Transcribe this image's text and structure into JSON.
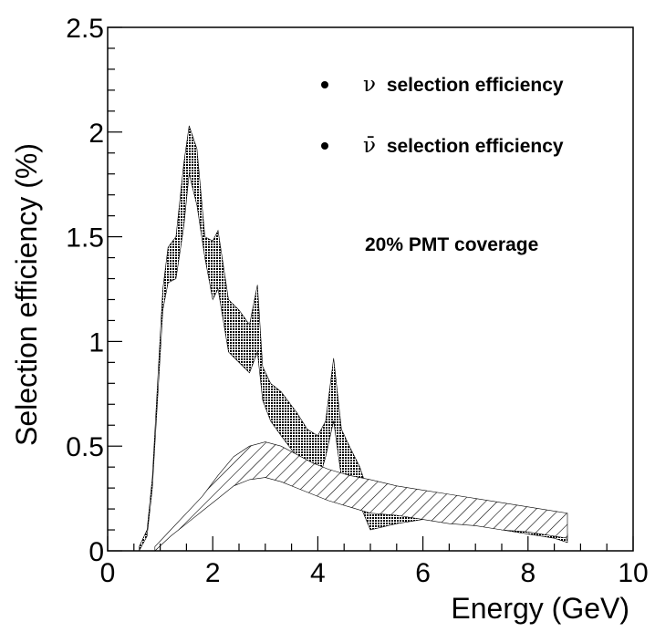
{
  "chart_data": {
    "type": "area",
    "title": "",
    "xlabel": "Energy (GeV)",
    "ylabel": "Selection efficiency (%)",
    "xlim": [
      0,
      10
    ],
    "ylim": [
      0,
      2.5
    ],
    "x_ticks": [
      "0",
      "2",
      "4",
      "6",
      "8",
      "10"
    ],
    "y_ticks": [
      "0",
      "0.5",
      "1",
      "1.5",
      "2",
      "2.5"
    ],
    "grid": false,
    "legend_position": "top-right",
    "annotation": "20% PMT coverage",
    "legend": [
      {
        "symbol": "ν",
        "label": "selection efficiency"
      },
      {
        "symbol": "ν̄",
        "label": "selection efficiency"
      }
    ],
    "series": [
      {
        "label_index": 0,
        "fill": "dense-dots",
        "x": [
          0.6,
          0.75,
          0.85,
          0.95,
          1.05,
          1.15,
          1.3,
          1.45,
          1.55,
          1.7,
          1.85,
          2.0,
          2.1,
          2.3,
          2.5,
          2.7,
          2.85,
          2.95,
          3.1,
          3.3,
          3.6,
          3.8,
          4.0,
          4.15,
          4.3,
          4.45,
          4.6,
          4.8,
          5.0,
          5.5,
          6.0,
          6.3,
          7.0,
          7.5,
          8.0,
          8.5,
          8.75
        ],
        "upper": [
          0.02,
          0.1,
          0.35,
          0.8,
          1.25,
          1.45,
          1.5,
          1.85,
          2.03,
          1.92,
          1.5,
          1.48,
          1.53,
          1.2,
          1.15,
          1.08,
          1.27,
          0.88,
          0.8,
          0.76,
          0.66,
          0.58,
          0.55,
          0.62,
          0.92,
          0.58,
          0.5,
          0.4,
          0.25,
          0.23,
          0.22,
          0.21,
          0.18,
          0.16,
          0.13,
          0.1,
          0.08
        ],
        "lower": [
          0.0,
          0.07,
          0.3,
          0.72,
          1.15,
          1.28,
          1.3,
          1.55,
          1.8,
          1.65,
          1.4,
          1.2,
          1.25,
          0.95,
          0.9,
          0.85,
          0.95,
          0.72,
          0.62,
          0.55,
          0.45,
          0.37,
          0.32,
          0.45,
          0.62,
          0.35,
          0.3,
          0.22,
          0.1,
          0.13,
          0.15,
          0.16,
          0.13,
          0.1,
          0.08,
          0.06,
          0.04
        ]
      },
      {
        "label_index": 1,
        "fill": "diagonal-hatch",
        "x": [
          0.9,
          1.2,
          1.5,
          1.8,
          2.1,
          2.4,
          2.7,
          3.0,
          3.3,
          3.6,
          3.9,
          4.2,
          4.6,
          5.0,
          5.5,
          6.0,
          6.5,
          7.0,
          7.5,
          8.0,
          8.5,
          8.75
        ],
        "upper": [
          0.02,
          0.1,
          0.18,
          0.26,
          0.36,
          0.45,
          0.5,
          0.52,
          0.5,
          0.46,
          0.42,
          0.39,
          0.36,
          0.34,
          0.31,
          0.29,
          0.27,
          0.25,
          0.23,
          0.21,
          0.19,
          0.18
        ],
        "lower": [
          0.0,
          0.07,
          0.13,
          0.19,
          0.25,
          0.31,
          0.34,
          0.35,
          0.33,
          0.3,
          0.27,
          0.24,
          0.21,
          0.18,
          0.17,
          0.15,
          0.13,
          0.12,
          0.1,
          0.09,
          0.07,
          0.06
        ]
      }
    ]
  }
}
